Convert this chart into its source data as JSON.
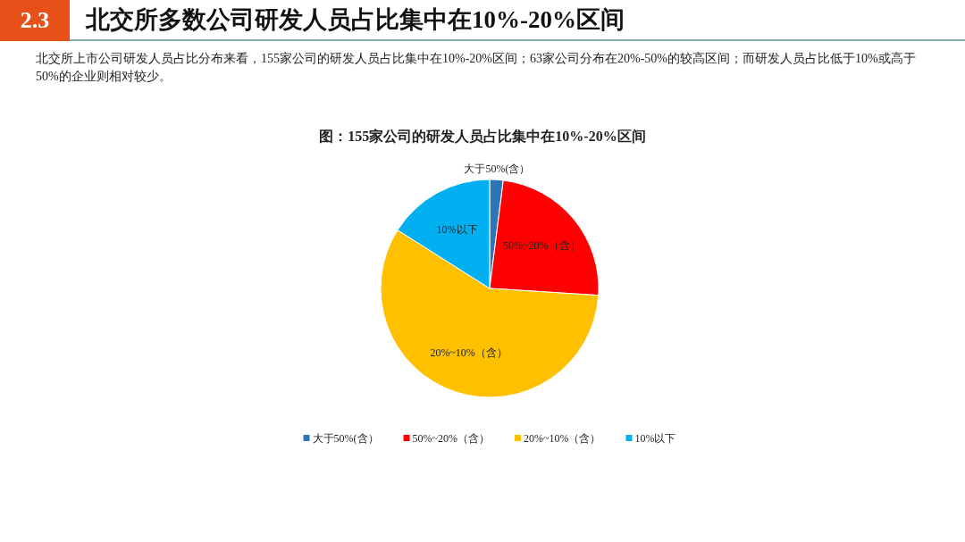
{
  "chart_data": {
    "type": "pie",
    "title": "图：155家公司的研发人员占比集中在10%-20%区间",
    "categories": [
      "大于50%(含）",
      "50%~20%（含）",
      "20%~10%（含）",
      "10%以下"
    ],
    "values": [
      2,
      24,
      58,
      16
    ],
    "colors": [
      "#2e75b6",
      "#ff0000",
      "#ffc000",
      "#00b0f0"
    ],
    "legend": "bottom",
    "annotations": [
      "2.3",
      "北交所多数公司研发人员占比集中在10%-20%区间",
      "北交所上市公司研发人员占比分布来看，155家公司的研发人员占比集中在10%-20%区间；63家公司分布在20%-50%的较高区间；而研发人员占比低于10%或高于50%的企业则相对较少。"
    ]
  }
}
